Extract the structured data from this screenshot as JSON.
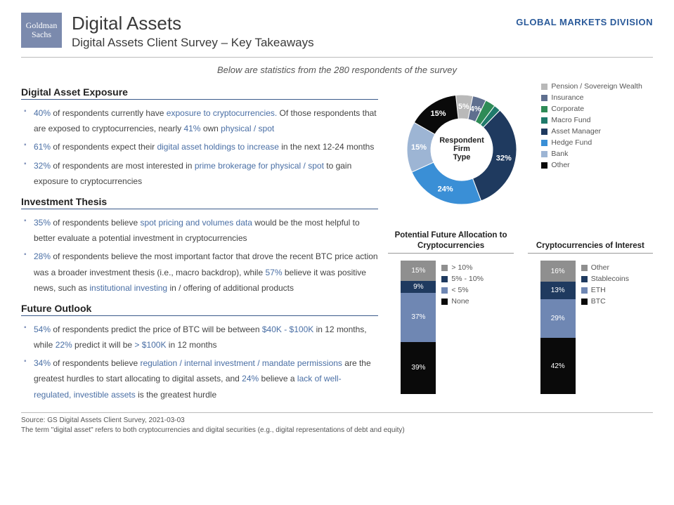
{
  "logo": {
    "line1": "Goldman",
    "line2": "Sachs",
    "bg": "#7b8aad"
  },
  "header": {
    "title": "Digital Assets",
    "subtitle": "Digital Assets Client Survey – Key Takeaways",
    "division": "GLOBAL MARKETS DIVISION"
  },
  "intro": "Below are statistics from the 280 respondents of the survey",
  "sections": {
    "exposure": {
      "title": "Digital Asset Exposure",
      "items": [
        {
          "pct": "40%",
          "t1": " of respondents currently have ",
          "hl1": "exposure to cryptocurrencies.",
          "t2": " Of those respondents that are exposed to cryptocurrencies, nearly ",
          "pct2": "41%",
          "t3": " own ",
          "hl2": "physical / spot"
        },
        {
          "pct": "61%",
          "t1": " of respondents expect their ",
          "hl1": "digital asset holdings to increase",
          "t2": " in the next 12-24 months"
        },
        {
          "pct": "32%",
          "t1": " of respondents are most interested in ",
          "hl1": "prime brokerage for physical / spot",
          "t2": " to gain exposure to cryptocurrencies"
        }
      ]
    },
    "thesis": {
      "title": "Investment Thesis",
      "items": [
        {
          "pct": "35%",
          "t1": " of respondents believe ",
          "hl1": "spot pricing and volumes data",
          "t2": " would be the most helpful to better evaluate a potential investment in cryptocurrencies"
        },
        {
          "pct": "28%",
          "t1": " of respondents believe the most important factor that drove the recent BTC price action was a broader investment thesis (i.e., macro backdrop), while ",
          "pct2": "57%",
          "t2": " believe it was positive news, such as ",
          "hl1": "institutional investing",
          "t3": " in / offering of additional products"
        }
      ]
    },
    "outlook": {
      "title": "Future Outlook",
      "items": [
        {
          "pct": "54%",
          "t1": " of respondents predict the price of BTC will be between ",
          "hl1": "$40K - $100K",
          "t2": " in 12 months, while ",
          "pct2": "22%",
          "t3": " predict it will be ",
          "hl2": "> $100K",
          "t4": " in 12 months"
        },
        {
          "pct": "34%",
          "t1": " of respondents believe ",
          "hl1": "regulation / internal investment / mandate permissions",
          "t2": " are the greatest hurdles to start allocating to digital assets, and ",
          "pct2": "24%",
          "t3": " believe a ",
          "hl2": "lack of well-regulated, investible assets",
          "t4": " is the greatest hurdle"
        }
      ]
    }
  },
  "donut": {
    "type": "donut",
    "center_label_1": "Respondent",
    "center_label_2": "Firm",
    "center_label_3": "Type",
    "slices": [
      {
        "label": "Pension / Sovereign Wealth",
        "value": 5,
        "color": "#b9b9b9",
        "text": "5%"
      },
      {
        "label": "Insurance",
        "value": 4,
        "color": "#5f6f8f",
        "text": "4%"
      },
      {
        "label": "Corporate",
        "value": 3,
        "color": "#2e8b57",
        "text": ""
      },
      {
        "label": "Macro Fund",
        "value": 2,
        "color": "#1f7a6b",
        "text": ""
      },
      {
        "label": "Asset Manager",
        "value": 32,
        "color": "#1f3a5f",
        "text": "32%"
      },
      {
        "label": "Hedge Fund",
        "value": 24,
        "color": "#3a8fd6",
        "text": "24%"
      },
      {
        "label": "Bank",
        "value": 15,
        "color": "#9db5d4",
        "text": "15%"
      },
      {
        "label": "Other",
        "value": 15,
        "color": "#0a0a0a",
        "text": "15%"
      }
    ],
    "hole_bg": "#ffffff",
    "label_fontsize": 11,
    "label_color": "#ffffff"
  },
  "bars": {
    "allocation": {
      "title": "Potential Future Allocation to Cryptocurrencies",
      "type": "stacked-bar",
      "segments": [
        {
          "label": "> 10%",
          "value": 15,
          "color": "#8f8f8f",
          "text": "15%"
        },
        {
          "label": "5% - 10%",
          "value": 9,
          "color": "#1f3a5f",
          "text": "9%"
        },
        {
          "label": "< 5%",
          "value": 37,
          "color": "#6f87b3",
          "text": "37%"
        },
        {
          "label": "None",
          "value": 39,
          "color": "#0a0a0a",
          "text": "39%"
        }
      ]
    },
    "interest": {
      "title": "Cryptocurrencies of Interest",
      "type": "stacked-bar",
      "segments": [
        {
          "label": "Other",
          "value": 16,
          "color": "#8f8f8f",
          "text": "16%"
        },
        {
          "label": "Stablecoins",
          "value": 13,
          "color": "#1f3a5f",
          "text": "13%"
        },
        {
          "label": "ETH",
          "value": 29,
          "color": "#6f87b3",
          "text": "29%"
        },
        {
          "label": "BTC",
          "value": 42,
          "color": "#0a0a0a",
          "text": "42%"
        }
      ]
    }
  },
  "footer": {
    "line1": "Source: GS Digital Assets Client Survey, 2021-03-03",
    "line2": "The term \"digital asset\" refers to both cryptocurrencies and digital securities (e.g., digital representations of debt and equity)"
  },
  "colors": {
    "accent": "#4a6fa5",
    "rule": "#3a5a8a"
  }
}
